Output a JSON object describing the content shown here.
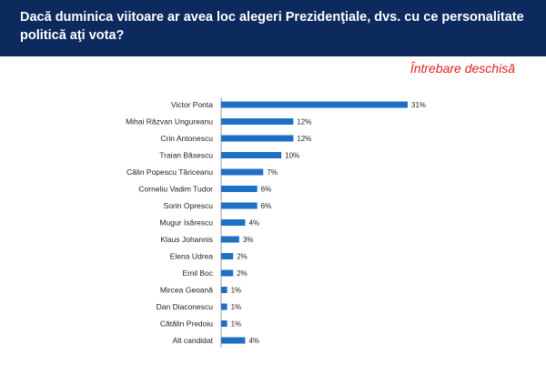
{
  "header": {
    "title": "Dacă duminica viitoare ar avea loc alegeri Prezidenţiale, dvs. cu ce personalitate politică aţi vota?"
  },
  "subtitle": "Întrebare deschisă",
  "colors": {
    "header_bg": "#0d2a5e",
    "bar": "#1f6fc5",
    "subtitle": "#e0201b"
  },
  "chart_data": {
    "type": "bar",
    "orientation": "horizontal",
    "categories": [
      "Victor Ponta",
      "Mihai Răzvan Ungureanu",
      "Crin Antonescu",
      "Traian Băsescu",
      "Călin Popescu Tăriceanu",
      "Corneliu Vadim Tudor",
      "Sorin Oprescu",
      "Mugur Isărescu",
      "Klaus Johannis",
      "Elena Udrea",
      "Emil Boc",
      "Mircea Geoană",
      "Dan Diaconescu",
      "Cătălin Predoiu",
      "Alt candidat"
    ],
    "values": [
      31,
      12,
      12,
      10,
      7,
      6,
      6,
      4,
      3,
      2,
      2,
      1,
      1,
      1,
      4
    ],
    "value_labels": [
      "31%",
      "12%",
      "12%",
      "10%",
      "7%",
      "6%",
      "6%",
      "4%",
      "3%",
      "2%",
      "2%",
      "1%",
      "1%",
      "1%",
      "4%"
    ],
    "xlim": [
      0,
      31
    ],
    "grid": false,
    "legend": "none"
  }
}
